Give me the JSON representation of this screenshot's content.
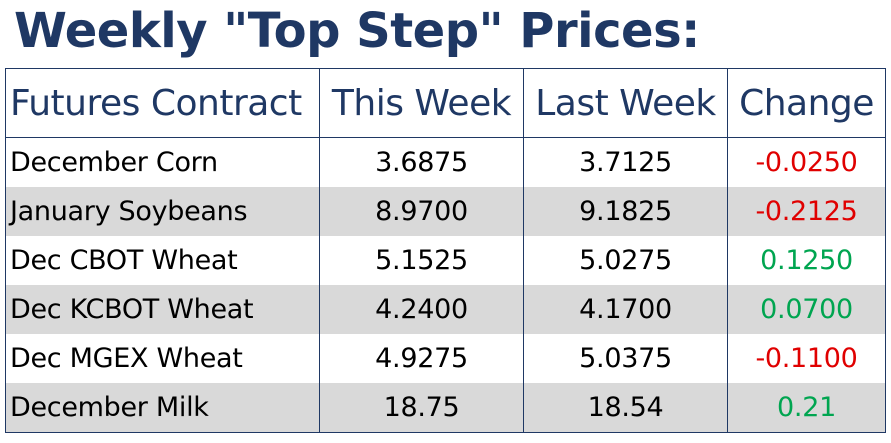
{
  "title": "Weekly \"Top Step\" Prices:",
  "table": {
    "headers": [
      "Futures Contract",
      "This Week",
      "Last Week",
      "Change"
    ],
    "rows": [
      {
        "contract": "December Corn",
        "this_week": "3.6875",
        "last_week": "3.7125",
        "change": "-0.0250",
        "direction": "down"
      },
      {
        "contract": "January Soybeans",
        "this_week": "8.9700",
        "last_week": "9.1825",
        "change": "-0.2125",
        "direction": "down"
      },
      {
        "contract": "Dec CBOT Wheat",
        "this_week": "5.1525",
        "last_week": "5.0275",
        "change": "0.1250",
        "direction": "up"
      },
      {
        "contract": "Dec KCBOT Wheat",
        "this_week": "4.2400",
        "last_week": "4.1700",
        "change": "0.0700",
        "direction": "up"
      },
      {
        "contract": "Dec MGEX Wheat",
        "this_week": "4.9275",
        "last_week": "5.0375",
        "change": "-0.1100",
        "direction": "down"
      },
      {
        "contract": "December Milk",
        "this_week": "18.75",
        "last_week": "18.54",
        "change": "0.21",
        "direction": "up"
      }
    ]
  },
  "colors": {
    "title": "#1f3864",
    "header_text": "#1f3864",
    "border": "#1f3864",
    "row_shade": "#d9d9d9",
    "negative": "#e00000",
    "positive": "#00a550"
  }
}
